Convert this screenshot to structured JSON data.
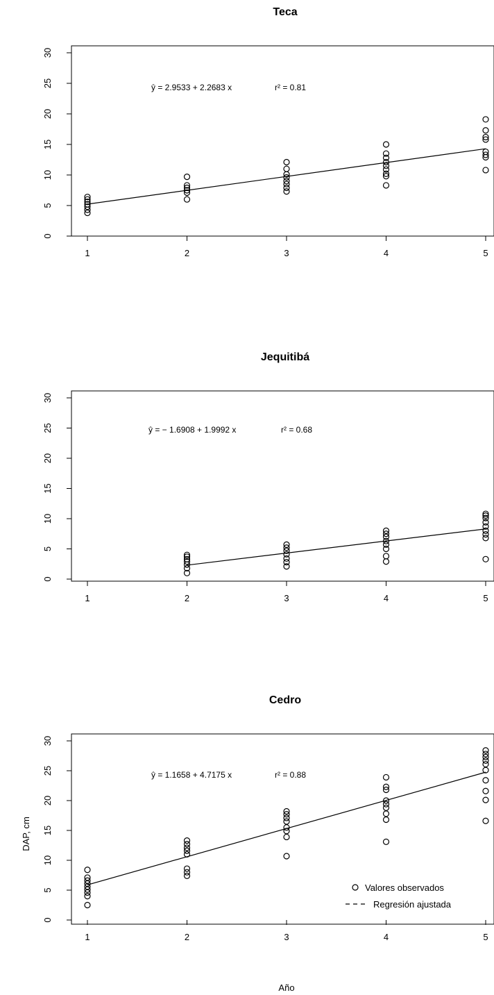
{
  "figure": {
    "xlabel": "Año",
    "ylabel": "DAP, cm",
    "legend": {
      "position": "bottom-right",
      "items": [
        {
          "label": "Valores observados",
          "symbol": "open-circle"
        },
        {
          "label": "Regresión ajustada",
          "symbol": "dashed-line"
        }
      ]
    }
  },
  "chart_data": [
    {
      "type": "scatter",
      "title": "Teca",
      "equation": "ŷ = 2.9533 + 2.2683 x",
      "r2_text": "r² = 0.81",
      "regression": {
        "intercept": 2.9533,
        "slope": 2.2683,
        "x_range": [
          1,
          5
        ]
      },
      "xlim": [
        1,
        5
      ],
      "ylim": [
        0,
        30
      ],
      "x_ticks": [
        "1",
        "2",
        "3",
        "4",
        "5"
      ],
      "y_ticks": [
        "0",
        "5",
        "10",
        "15",
        "20",
        "25",
        "30"
      ],
      "points": {
        "1": [
          3.8,
          4.3,
          4.8,
          5.2,
          5.6,
          6.0,
          6.4
        ],
        "2": [
          6.0,
          7.1,
          7.5,
          7.9,
          8.3,
          9.7
        ],
        "3": [
          7.3,
          7.9,
          8.5,
          9.0,
          9.6,
          10.1,
          11.0,
          12.1
        ],
        "4": [
          8.3,
          9.8,
          10.2,
          10.9,
          11.5,
          12.1,
          12.8,
          13.5,
          15.0
        ],
        "5": [
          10.8,
          12.9,
          13.3,
          13.8,
          15.8,
          16.2,
          17.3,
          19.1
        ]
      }
    },
    {
      "type": "scatter",
      "title": "Jequitibá",
      "equation": "ŷ = − 1.6908 + 1.9992 x",
      "r2_text": "r² = 0.68",
      "regression": {
        "intercept": -1.6908,
        "slope": 1.9992,
        "x_range": [
          2,
          5
        ]
      },
      "xlim": [
        1,
        5
      ],
      "ylim": [
        0,
        30
      ],
      "x_ticks": [
        "1",
        "2",
        "3",
        "4",
        "5"
      ],
      "y_ticks": [
        "0",
        "5",
        "10",
        "15",
        "20",
        "25",
        "30"
      ],
      "points": {
        "2": [
          1.0,
          1.8,
          2.4,
          2.9,
          3.3,
          3.7,
          4.0
        ],
        "3": [
          2.1,
          2.8,
          3.4,
          4.1,
          4.7,
          5.2,
          5.7
        ],
        "4": [
          2.9,
          3.8,
          5.0,
          5.7,
          6.3,
          7.0,
          7.5,
          8.0
        ],
        "5": [
          3.3,
          6.8,
          7.4,
          8.0,
          8.7,
          9.4,
          10.1,
          10.5,
          10.8
        ]
      }
    },
    {
      "type": "scatter",
      "title": "Cedro",
      "equation": "ŷ = 1.1658 + 4.7175 x",
      "r2_text": "r² = 0.88",
      "regression": {
        "intercept": 1.1658,
        "slope": 4.7175,
        "x_range": [
          1,
          5
        ]
      },
      "xlim": [
        1,
        5
      ],
      "ylim": [
        0,
        30
      ],
      "x_ticks": [
        "1",
        "2",
        "3",
        "4",
        "5"
      ],
      "y_ticks": [
        "0",
        "5",
        "10",
        "15",
        "20",
        "25",
        "30"
      ],
      "points": {
        "1": [
          2.5,
          4.0,
          4.6,
          5.1,
          5.6,
          6.1,
          6.6,
          7.1,
          8.4
        ],
        "2": [
          7.4,
          8.0,
          8.6,
          11.0,
          11.6,
          12.1,
          12.7,
          13.3
        ],
        "3": [
          10.7,
          13.9,
          14.9,
          15.5,
          16.5,
          17.1,
          17.7,
          18.2
        ],
        "4": [
          13.1,
          16.8,
          17.8,
          18.8,
          19.4,
          20.0,
          21.8,
          22.3,
          23.9
        ],
        "5": [
          16.6,
          20.1,
          21.6,
          23.4,
          25.1,
          26.1,
          26.7,
          27.3,
          27.8,
          28.4
        ]
      }
    }
  ]
}
